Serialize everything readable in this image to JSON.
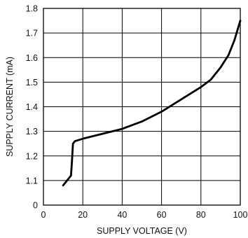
{
  "chart_data": {
    "type": "line",
    "title": "",
    "xlabel": "SUPPLY VOLTAGE (V)",
    "ylabel": "SUPPLY CURRENT (mA)",
    "xlim": [
      0,
      100
    ],
    "ylim": [
      1.0,
      1.8
    ],
    "x_ticks": [
      0,
      20,
      40,
      60,
      80,
      100
    ],
    "x_tick_labels": [
      "0",
      "20",
      "40",
      "60",
      "80",
      "100"
    ],
    "y_ticks": [
      1.0,
      1.1,
      1.2,
      1.3,
      1.4,
      1.5,
      1.6,
      1.7,
      1.8
    ],
    "y_tick_labels": [
      "0",
      "1.1",
      "1.2",
      "1.3",
      "1.4",
      "1.5",
      "1.6",
      "1.7",
      "1.8"
    ],
    "grid": true,
    "axis_break": "lower y-axis (0 to 1.0 compressed)",
    "series": [
      {
        "color": "#000000",
        "x": [
          10,
          12,
          14,
          14.5,
          15,
          16,
          20,
          30,
          40,
          50,
          60,
          70,
          80,
          85,
          90,
          94,
          97,
          100
        ],
        "y": [
          1.08,
          1.1,
          1.12,
          1.18,
          1.25,
          1.26,
          1.27,
          1.29,
          1.31,
          1.34,
          1.38,
          1.43,
          1.48,
          1.51,
          1.56,
          1.61,
          1.67,
          1.75
        ]
      }
    ]
  }
}
